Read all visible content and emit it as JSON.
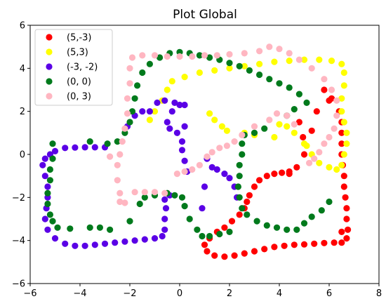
{
  "chart_data": {
    "type": "scatter",
    "title": "Plot Global",
    "xlabel": "",
    "ylabel": "",
    "xlim": [
      -6,
      8
    ],
    "ylim": [
      -6,
      6
    ],
    "xticks": [
      -6,
      -4,
      -2,
      0,
      2,
      4,
      6,
      8
    ],
    "yticks": [
      -6,
      -4,
      -2,
      0,
      2,
      4,
      6
    ],
    "xtick_labels": [
      "−6",
      "−4",
      "−2",
      "0",
      "2",
      "4",
      "6",
      "8"
    ],
    "ytick_labels": [
      "−6",
      "−4",
      "−2",
      "0",
      "2",
      "4",
      "6"
    ],
    "grid": false,
    "legend_position": "top-left",
    "series": [
      {
        "name": "(5,-3)",
        "color": "#ff0000",
        "points": [
          [
            5.8,
            3.0
          ],
          [
            6.1,
            2.6
          ],
          [
            6.4,
            2.0
          ],
          [
            6.5,
            1.5
          ],
          [
            6.5,
            1.0
          ],
          [
            6.5,
            0.5
          ],
          [
            6.5,
            0.0
          ],
          [
            6.55,
            -0.5
          ],
          [
            6.6,
            -1.0
          ],
          [
            6.6,
            -1.5
          ],
          [
            6.65,
            -2.0
          ],
          [
            6.7,
            -2.5
          ],
          [
            6.7,
            -3.0
          ],
          [
            6.75,
            -3.5
          ],
          [
            6.7,
            -3.9
          ],
          [
            6.5,
            -4.1
          ],
          [
            6.2,
            -4.1
          ],
          [
            5.8,
            -4.12
          ],
          [
            5.4,
            -4.15
          ],
          [
            5.0,
            -4.18
          ],
          [
            4.6,
            -4.2
          ],
          [
            4.2,
            -4.25
          ],
          [
            3.8,
            -4.3
          ],
          [
            3.4,
            -4.4
          ],
          [
            3.0,
            -4.5
          ],
          [
            2.6,
            -4.6
          ],
          [
            2.2,
            -4.7
          ],
          [
            1.8,
            -4.75
          ],
          [
            1.4,
            -4.7
          ],
          [
            1.1,
            -4.5
          ],
          [
            1.0,
            -4.2
          ],
          [
            1.2,
            -3.9
          ],
          [
            1.5,
            -3.6
          ],
          [
            1.8,
            -3.4
          ],
          [
            2.1,
            -3.1
          ],
          [
            2.4,
            -2.8
          ],
          [
            2.6,
            -2.5
          ],
          [
            2.7,
            -2.2
          ],
          [
            2.8,
            -1.9
          ],
          [
            3.0,
            -1.5
          ],
          [
            3.2,
            -1.2
          ],
          [
            3.5,
            -1.0
          ],
          [
            3.8,
            -0.9
          ],
          [
            4.1,
            -0.85
          ],
          [
            4.4,
            -0.8
          ],
          [
            4.7,
            -0.6
          ],
          [
            5.0,
            0.0
          ],
          [
            4.95,
            0.8
          ],
          [
            5.3,
            1.1
          ],
          [
            5.5,
            2.0
          ],
          [
            6.0,
            2.5
          ],
          [
            4.8,
            1.5
          ],
          [
            4.4,
            -0.9
          ],
          [
            6.5,
            -3.6
          ]
        ]
      },
      {
        "name": "(5,3)",
        "color": "#ffff00",
        "points": [
          [
            -1.2,
            1.6
          ],
          [
            -1.0,
            2.0
          ],
          [
            -0.7,
            2.5
          ],
          [
            -0.5,
            3.0
          ],
          [
            -0.3,
            3.4
          ],
          [
            0.2,
            3.6
          ],
          [
            0.8,
            3.8
          ],
          [
            1.4,
            3.9
          ],
          [
            2.0,
            4.0
          ],
          [
            2.6,
            4.1
          ],
          [
            3.2,
            4.2
          ],
          [
            3.8,
            4.3
          ],
          [
            4.4,
            4.35
          ],
          [
            5.0,
            4.4
          ],
          [
            5.6,
            4.4
          ],
          [
            6.1,
            4.35
          ],
          [
            6.5,
            4.2
          ],
          [
            6.6,
            3.8
          ],
          [
            6.6,
            3.2
          ],
          [
            6.5,
            2.6
          ],
          [
            6.5,
            2.0
          ],
          [
            6.6,
            1.5
          ],
          [
            6.7,
            1.0
          ],
          [
            6.7,
            0.5
          ],
          [
            6.6,
            0.0
          ],
          [
            6.5,
            -0.5
          ],
          [
            6.3,
            -0.7
          ],
          [
            6.0,
            -0.6
          ],
          [
            5.6,
            -0.4
          ],
          [
            5.3,
            0.0
          ],
          [
            5.0,
            0.5
          ],
          [
            4.6,
            1.0
          ],
          [
            4.3,
            1.3
          ],
          [
            4.0,
            1.4
          ],
          [
            1.7,
            1.3
          ],
          [
            1.4,
            1.6
          ],
          [
            1.2,
            1.9
          ],
          [
            3.0,
            0.9
          ],
          [
            2.6,
            1.0
          ],
          [
            1.9,
            1.1
          ],
          [
            3.8,
            0.8
          ],
          [
            5.1,
            0.4
          ]
        ]
      },
      {
        "name": "(-3, -2)",
        "color": "#5a00e6",
        "points": [
          [
            -5.5,
            -0.5
          ],
          [
            -5.4,
            -1.0
          ],
          [
            -5.3,
            -1.5
          ],
          [
            -5.3,
            -2.0
          ],
          [
            -5.35,
            -2.5
          ],
          [
            -5.4,
            -3.0
          ],
          [
            -5.3,
            -3.5
          ],
          [
            -5.0,
            -3.9
          ],
          [
            -4.6,
            -4.15
          ],
          [
            -4.2,
            -4.25
          ],
          [
            -3.8,
            -4.25
          ],
          [
            -3.4,
            -4.2
          ],
          [
            -3.0,
            -4.15
          ],
          [
            -2.6,
            -4.1
          ],
          [
            -2.2,
            -4.05
          ],
          [
            -1.8,
            -4.0
          ],
          [
            -1.4,
            -3.95
          ],
          [
            -1.0,
            -3.9
          ],
          [
            -0.7,
            -3.8
          ],
          [
            -0.6,
            -3.5
          ],
          [
            -0.6,
            -3.0
          ],
          [
            -0.55,
            -2.5
          ],
          [
            -0.6,
            -2.1
          ],
          [
            -0.4,
            -1.9
          ],
          [
            -5.4,
            -0.2
          ],
          [
            -5.2,
            0.0
          ],
          [
            -5.0,
            0.15
          ],
          [
            -4.6,
            0.3
          ],
          [
            -4.2,
            0.32
          ],
          [
            -3.8,
            0.33
          ],
          [
            -3.4,
            0.33
          ],
          [
            -3.0,
            0.33
          ],
          [
            -0.4,
            1.2
          ],
          [
            -0.5,
            1.5
          ],
          [
            -0.3,
            2.0
          ],
          [
            0.0,
            2.3
          ],
          [
            -0.2,
            2.4
          ],
          [
            -0.6,
            2.5
          ],
          [
            -0.9,
            2.4
          ],
          [
            -1.2,
            2.0
          ],
          [
            -1.5,
            2.0
          ],
          [
            -1.8,
            1.8
          ],
          [
            -2.1,
            1.3
          ],
          [
            0.2,
            2.3
          ],
          [
            0.1,
            0.6
          ],
          [
            0.1,
            0.2
          ],
          [
            0.2,
            -0.3
          ],
          [
            0.3,
            -0.8
          ],
          [
            1.1,
            -0.2
          ],
          [
            1.3,
            -0.6
          ],
          [
            1.5,
            -0.7
          ],
          [
            1.8,
            -0.9
          ],
          [
            2.0,
            -1.1
          ],
          [
            2.2,
            -1.5
          ],
          [
            2.3,
            -2.0
          ],
          [
            1.0,
            -1.5
          ],
          [
            0.9,
            -2.5
          ],
          [
            0.2,
            1.3
          ],
          [
            -0.1,
            1.0
          ]
        ]
      },
      {
        "name": "(0, 0)",
        "color": "#007a1c",
        "points": [
          [
            -2.5,
            0.6
          ],
          [
            -2.2,
            1.0
          ],
          [
            -2.0,
            1.5
          ],
          [
            -1.9,
            2.0
          ],
          [
            -1.8,
            2.6
          ],
          [
            -1.7,
            3.2
          ],
          [
            -1.5,
            3.8
          ],
          [
            -1.2,
            4.2
          ],
          [
            -0.8,
            4.5
          ],
          [
            -0.4,
            4.7
          ],
          [
            0.0,
            4.75
          ],
          [
            0.4,
            4.7
          ],
          [
            0.8,
            4.6
          ],
          [
            1.2,
            4.5
          ],
          [
            1.6,
            4.4
          ],
          [
            2.0,
            4.25
          ],
          [
            2.4,
            4.1
          ],
          [
            2.8,
            3.9
          ],
          [
            3.2,
            3.7
          ],
          [
            3.6,
            3.5
          ],
          [
            4.0,
            3.3
          ],
          [
            4.4,
            3.1
          ],
          [
            4.8,
            2.8
          ],
          [
            5.1,
            2.4
          ],
          [
            4.6,
            2.1
          ],
          [
            4.3,
            1.8
          ],
          [
            3.4,
            1.2
          ],
          [
            3.0,
            1.0
          ],
          [
            2.6,
            0.9
          ],
          [
            2.5,
            0.5
          ],
          [
            2.5,
            0.0
          ],
          [
            2.4,
            -0.5
          ],
          [
            2.4,
            -1.0
          ],
          [
            2.35,
            -1.5
          ],
          [
            2.4,
            -2.0
          ],
          [
            2.5,
            -2.5
          ],
          [
            2.7,
            -2.8
          ],
          [
            3.1,
            -3.1
          ],
          [
            3.5,
            -3.3
          ],
          [
            3.9,
            -3.4
          ],
          [
            4.3,
            -3.5
          ],
          [
            4.7,
            -3.5
          ],
          [
            5.0,
            -3.2
          ],
          [
            5.3,
            -2.9
          ],
          [
            5.7,
            -2.6
          ],
          [
            6.0,
            -2.2
          ],
          [
            2.0,
            -3.6
          ],
          [
            1.6,
            -3.7
          ],
          [
            1.2,
            -3.8
          ],
          [
            0.9,
            -3.8
          ],
          [
            0.7,
            -3.5
          ],
          [
            0.4,
            -3.0
          ],
          [
            0.2,
            -2.4
          ],
          [
            0.1,
            -2.0
          ],
          [
            -0.2,
            -1.9
          ],
          [
            -0.5,
            -1.8
          ],
          [
            -1.0,
            -1.9
          ],
          [
            -1.4,
            -2.0
          ],
          [
            -1.6,
            -2.3
          ],
          [
            -2.0,
            -3.1
          ],
          [
            -2.8,
            -3.5
          ],
          [
            -3.2,
            -3.4
          ],
          [
            -3.6,
            -3.4
          ],
          [
            -4.4,
            -3.45
          ],
          [
            -4.9,
            -3.4
          ],
          [
            -5.1,
            -3.1
          ],
          [
            -5.2,
            -2.8
          ],
          [
            -5.3,
            -2.3
          ],
          [
            -5.3,
            -1.8
          ],
          [
            -5.2,
            -1.2
          ],
          [
            -5.2,
            -0.7
          ],
          [
            -5.1,
            -0.2
          ],
          [
            -5.1,
            0.5
          ],
          [
            -3.6,
            0.6
          ],
          [
            -2.9,
            0.5
          ]
        ]
      },
      {
        "name": "(0, 3)",
        "color": "#ffb6c1",
        "points": [
          [
            -2.4,
            -2.2
          ],
          [
            -2.2,
            -2.25
          ],
          [
            -2.4,
            -1.8
          ],
          [
            -2.5,
            -1.2
          ],
          [
            -2.5,
            -0.5
          ],
          [
            -2.4,
            0.0
          ],
          [
            -2.3,
            0.6
          ],
          [
            -2.2,
            1.2
          ],
          [
            -2.1,
            1.9
          ],
          [
            -2.1,
            2.6
          ],
          [
            -2.0,
            3.3
          ],
          [
            -2.0,
            4.0
          ],
          [
            -1.9,
            4.5
          ],
          [
            -1.5,
            4.6
          ],
          [
            -1.0,
            4.6
          ],
          [
            -0.5,
            4.55
          ],
          [
            0.0,
            4.55
          ],
          [
            0.5,
            4.55
          ],
          [
            1.0,
            4.6
          ],
          [
            1.5,
            4.6
          ],
          [
            2.0,
            4.65
          ],
          [
            2.6,
            4.7
          ],
          [
            3.2,
            4.8
          ],
          [
            3.6,
            5.0
          ],
          [
            4.0,
            4.9
          ],
          [
            4.4,
            4.7
          ],
          [
            4.8,
            4.4
          ],
          [
            5.3,
            4.0
          ],
          [
            5.8,
            3.5
          ],
          [
            6.1,
            3.0
          ],
          [
            6.3,
            2.5
          ],
          [
            6.3,
            1.8
          ],
          [
            6.2,
            1.2
          ],
          [
            6.0,
            0.8
          ],
          [
            5.8,
            0.5
          ],
          [
            5.6,
            0.1
          ],
          [
            5.4,
            -0.2
          ],
          [
            5.2,
            -0.4
          ],
          [
            4.6,
            1.4
          ],
          [
            4.3,
            1.8
          ],
          [
            3.9,
            1.9
          ],
          [
            3.6,
            1.6
          ],
          [
            3.0,
            1.3
          ],
          [
            2.5,
            0.9
          ],
          [
            2.2,
            0.6
          ],
          [
            1.9,
            0.4
          ],
          [
            1.6,
            0.3
          ],
          [
            1.3,
            0.1
          ],
          [
            1.1,
            -0.1
          ],
          [
            0.8,
            -0.5
          ],
          [
            0.5,
            -0.7
          ],
          [
            0.2,
            -0.8
          ],
          [
            -0.1,
            -0.9
          ],
          [
            -0.6,
            -1.8
          ],
          [
            -1.0,
            -1.75
          ],
          [
            -1.4,
            -1.75
          ],
          [
            -1.8,
            -1.75
          ],
          [
            -2.8,
            -0.1
          ]
        ]
      }
    ]
  }
}
